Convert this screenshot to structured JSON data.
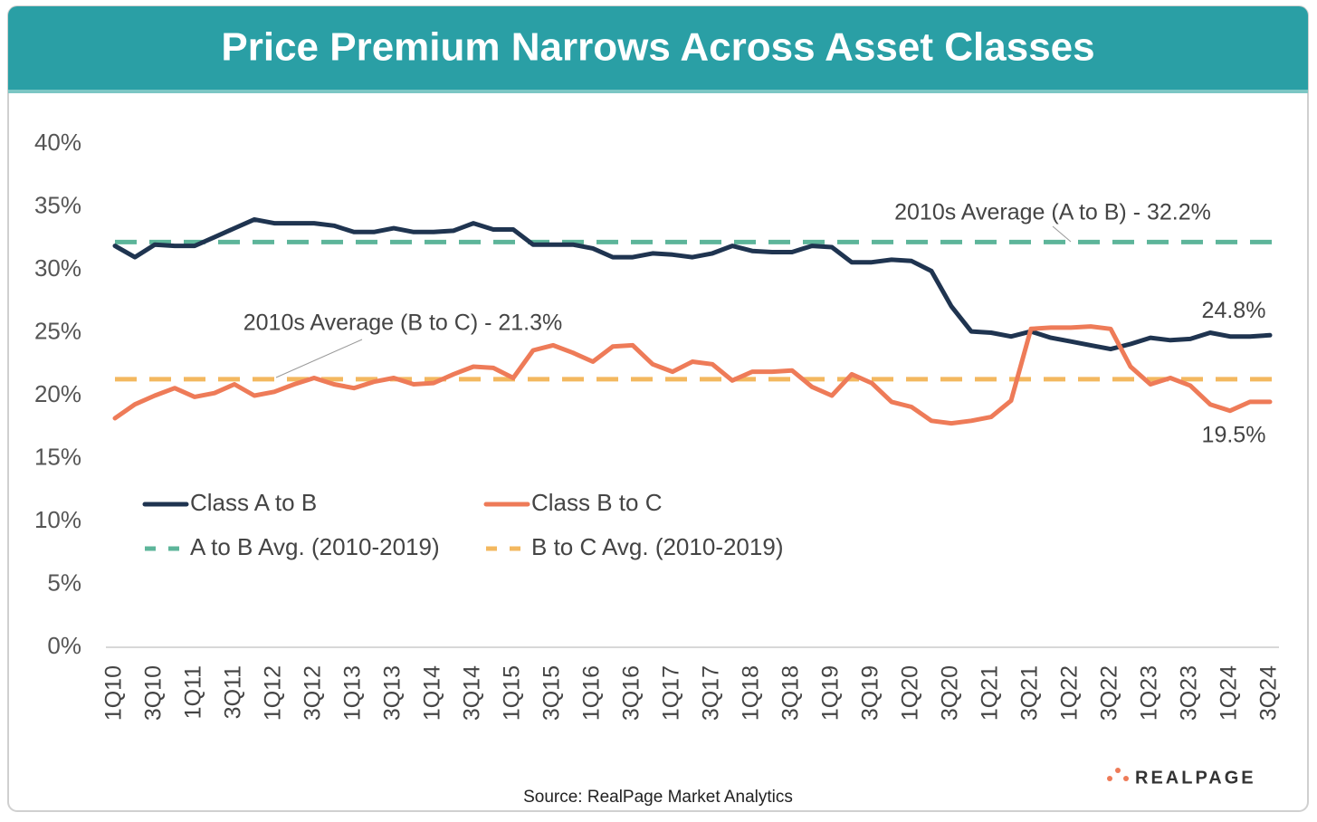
{
  "chart_data": {
    "type": "line",
    "title": "Price Premium Narrows Across Asset Classes",
    "source": "Source: RealPage Market Analytics",
    "logo": "REALPAGE",
    "categories": [
      "1Q10",
      null,
      "3Q10",
      null,
      "1Q11",
      null,
      "3Q11",
      null,
      "1Q12",
      null,
      "3Q12",
      null,
      "1Q13",
      null,
      "3Q13",
      null,
      "1Q14",
      null,
      "3Q14",
      null,
      "1Q15",
      null,
      "3Q15",
      null,
      "1Q16",
      null,
      "3Q16",
      null,
      "1Q17",
      null,
      "3Q17",
      null,
      "1Q18",
      null,
      "3Q18",
      null,
      "1Q19",
      null,
      "3Q19",
      null,
      "1Q20",
      null,
      "3Q20",
      null,
      "1Q21",
      null,
      "3Q21",
      null,
      "1Q22",
      null,
      "3Q22",
      null,
      "1Q23",
      null,
      "3Q23",
      null,
      "1Q24",
      null,
      "3Q24"
    ],
    "series": [
      {
        "name": "Class A to B",
        "color": "#1f3450",
        "values": [
          31.9,
          31.0,
          32.0,
          31.9,
          31.9,
          32.6,
          33.3,
          34.0,
          33.7,
          33.7,
          33.7,
          33.5,
          33.0,
          33.0,
          33.3,
          33.0,
          33.0,
          33.1,
          33.7,
          33.2,
          33.2,
          32.0,
          32.0,
          32.0,
          31.7,
          31.0,
          31.0,
          31.3,
          31.2,
          31.0,
          31.3,
          31.9,
          31.5,
          31.4,
          31.4,
          31.9,
          31.8,
          30.6,
          30.6,
          30.8,
          30.7,
          29.9,
          27.1,
          25.1,
          25.0,
          24.7,
          25.1,
          24.6,
          24.3,
          24.0,
          23.7,
          24.1,
          24.6,
          24.4,
          24.5,
          25.0,
          24.7,
          24.7,
          24.8
        ],
        "value_labels": [
          null,
          null,
          null,
          null,
          null,
          null,
          null,
          null,
          null,
          null,
          null,
          null,
          null,
          null,
          null,
          null,
          null,
          null,
          null,
          null,
          null,
          null,
          null,
          null,
          null,
          null,
          null,
          null,
          null,
          null,
          null,
          null,
          null,
          null,
          null,
          null,
          null,
          null,
          null,
          null,
          null,
          null,
          null,
          null,
          null,
          null,
          null,
          null,
          null,
          null,
          null,
          null,
          null,
          null,
          null,
          null,
          null,
          null,
          "24.8%"
        ]
      },
      {
        "name": "Class B to C",
        "color": "#ee7b58",
        "values": [
          18.2,
          19.3,
          20.0,
          20.6,
          19.9,
          20.2,
          20.9,
          20.0,
          20.3,
          20.9,
          21.4,
          20.9,
          20.6,
          21.1,
          21.4,
          20.9,
          21.0,
          21.7,
          22.3,
          22.2,
          21.4,
          23.6,
          24.0,
          23.4,
          22.7,
          23.9,
          24.0,
          22.5,
          21.9,
          22.7,
          22.5,
          21.2,
          21.9,
          21.9,
          22.0,
          20.7,
          20.0,
          21.7,
          21.0,
          19.5,
          19.1,
          18.0,
          17.8,
          18.0,
          18.3,
          19.6,
          25.3,
          25.4,
          25.4,
          25.5,
          25.3,
          22.3,
          20.9,
          21.4,
          20.8,
          19.3,
          18.8,
          19.5,
          19.5
        ],
        "value_labels": [
          null,
          null,
          null,
          null,
          null,
          null,
          null,
          null,
          null,
          null,
          null,
          null,
          null,
          null,
          null,
          null,
          null,
          null,
          null,
          null,
          null,
          null,
          null,
          null,
          null,
          null,
          null,
          null,
          null,
          null,
          null,
          null,
          null,
          null,
          null,
          null,
          null,
          null,
          null,
          null,
          null,
          null,
          null,
          null,
          null,
          null,
          null,
          null,
          null,
          null,
          null,
          null,
          null,
          null,
          null,
          null,
          null,
          null,
          "19.5%"
        ]
      }
    ],
    "reference_lines": [
      {
        "name": "A to B Avg. (2010-2019)",
        "color": "#5db59a",
        "value": 32.2,
        "annotation": "2010s Average (A to B) - 32.2%"
      },
      {
        "name": "B to C Avg. (2010-2019)",
        "color": "#f3b85f",
        "value": 21.3,
        "annotation": "2010s Average (B to C) - 21.3%"
      }
    ],
    "ylim": [
      0,
      40
    ],
    "yticks": [
      {
        "value": 0,
        "label": "0%"
      },
      {
        "value": 5,
        "label": "5%"
      },
      {
        "value": 10,
        "label": "10%"
      },
      {
        "value": 15,
        "label": "15%"
      },
      {
        "value": 20,
        "label": "20%"
      },
      {
        "value": 25,
        "label": "25%"
      },
      {
        "value": 30,
        "label": "30%"
      },
      {
        "value": 35,
        "label": "35%"
      },
      {
        "value": 40,
        "label": "40%"
      }
    ],
    "grid": false
  }
}
